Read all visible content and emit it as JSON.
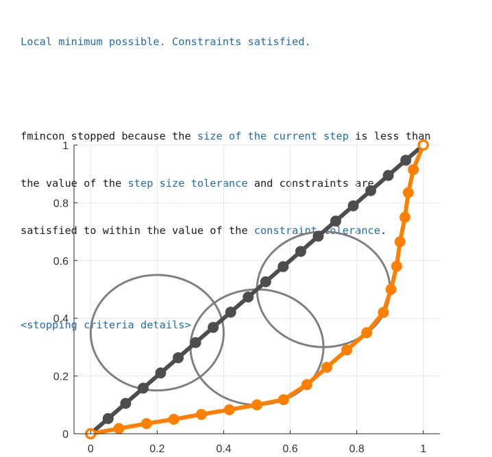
{
  "console": {
    "headline": "Local minimum possible. Constraints satisfied.",
    "p1": "fmincon stopped because the ",
    "link_step": "size of the current step",
    "p2": " is less than",
    "p3": "the value of the ",
    "link_tol": "step size tolerance",
    "p4": " and constraints are",
    "p5": "satisfied to within the value of the ",
    "link_con": "constraint tolerance",
    "p6": ".",
    "details_link": "<stopping criteria details>"
  },
  "colors": {
    "link": "#1f6bb3",
    "initial_path": "#4d4d4d",
    "optimal_path": "#ff8000",
    "obstacle": "#7f7f7f",
    "grid": "#e6e6e6"
  },
  "chart_data": {
    "type": "line",
    "xlim": [
      -0.05,
      1.05
    ],
    "ylim": [
      0,
      1
    ],
    "x_ticks": [
      0,
      0.2,
      0.4,
      0.6,
      0.8,
      1
    ],
    "x_tick_labels": [
      "0",
      "0.2",
      "0.4",
      "0.6",
      "0.8",
      "1"
    ],
    "y_ticks": [
      0,
      0.2,
      0.4,
      0.6,
      0.8,
      1
    ],
    "y_tick_labels": [
      "0",
      "0.2",
      "0.4",
      "0.6",
      "0.8",
      "1"
    ],
    "grid": true,
    "series": [
      {
        "style": "initial",
        "x": [
          0,
          0.0526,
          0.1053,
          0.1579,
          0.2105,
          0.2632,
          0.3158,
          0.3684,
          0.4211,
          0.4737,
          0.5263,
          0.5789,
          0.6316,
          0.6842,
          0.7368,
          0.7895,
          0.8421,
          0.8947,
          0.9474,
          1
        ],
        "y": [
          0,
          0.0526,
          0.1053,
          0.1579,
          0.2105,
          0.2632,
          0.3158,
          0.3684,
          0.4211,
          0.4737,
          0.5263,
          0.5789,
          0.6316,
          0.6842,
          0.7368,
          0.7895,
          0.8421,
          0.8947,
          0.9474,
          1
        ]
      },
      {
        "style": "optimal",
        "x": [
          0,
          0.085,
          0.168,
          0.25,
          0.333,
          0.417,
          0.5,
          0.58,
          0.65,
          0.71,
          0.77,
          0.83,
          0.88,
          0.903,
          0.92,
          0.93,
          0.945,
          0.955,
          0.97,
          1
        ],
        "y": [
          0,
          0.018,
          0.035,
          0.05,
          0.067,
          0.083,
          0.1,
          0.118,
          0.17,
          0.23,
          0.29,
          0.35,
          0.42,
          0.5,
          0.58,
          0.665,
          0.75,
          0.835,
          0.915,
          1
        ]
      }
    ],
    "circles": [
      {
        "cx": 0.2,
        "cy": 0.35,
        "r": 0.2
      },
      {
        "cx": 0.5,
        "cy": 0.3,
        "r": 0.2
      },
      {
        "cx": 0.7,
        "cy": 0.5,
        "r": 0.2
      }
    ]
  }
}
